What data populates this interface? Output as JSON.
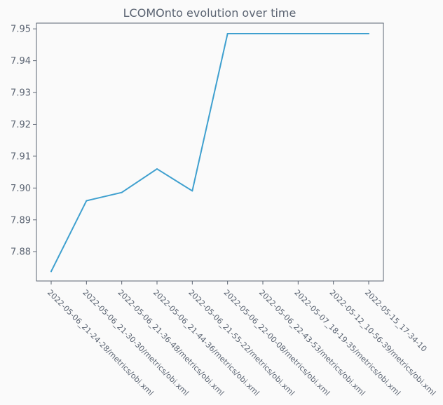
{
  "chart_data": {
    "type": "line",
    "title": "LCOMOnto evolution over time",
    "xlabel": "",
    "ylabel": "",
    "categories": [
      "2022-05-06_21-24-28/metrics/obi.xml",
      "2022-05-06_21-30-30/metrics/obi.xml",
      "2022-05-06_21-36-48/metrics/obi.xml",
      "2022-05-06_21-44-36/metrics/obi.xml",
      "2022-05-06_21-55-22/metrics/obi.xml",
      "2022-05-06_22-00-08/metrics/obi.xml",
      "2022-05-06_22-43-53/metrics/obi.xml",
      "2022-05-07_18-19-35/metrics/obi.xml",
      "2022-05-12_10-56-39/metrics/obi.xml",
      "2022-05-15_17-34-10"
    ],
    "series": [
      {
        "values": [
          7.8738,
          7.896,
          7.8986,
          7.906,
          7.8991,
          7.9485,
          7.9485,
          7.9485,
          7.9485,
          7.9485
        ],
        "color": "#3fa0cf"
      }
    ],
    "yticks": [
      "7.88",
      "7.89",
      "7.90",
      "7.91",
      "7.92",
      "7.93",
      "7.94",
      "7.95"
    ],
    "ytick_values": [
      7.88,
      7.89,
      7.9,
      7.91,
      7.92,
      7.93,
      7.94,
      7.95
    ],
    "ylim": [
      7.8708,
      7.9518
    ],
    "grid": false,
    "legend": "none",
    "colors": {
      "background": "#fafafa",
      "axes": "#5b6472",
      "text": "#5b6472",
      "line": "#3fa0cf"
    }
  }
}
